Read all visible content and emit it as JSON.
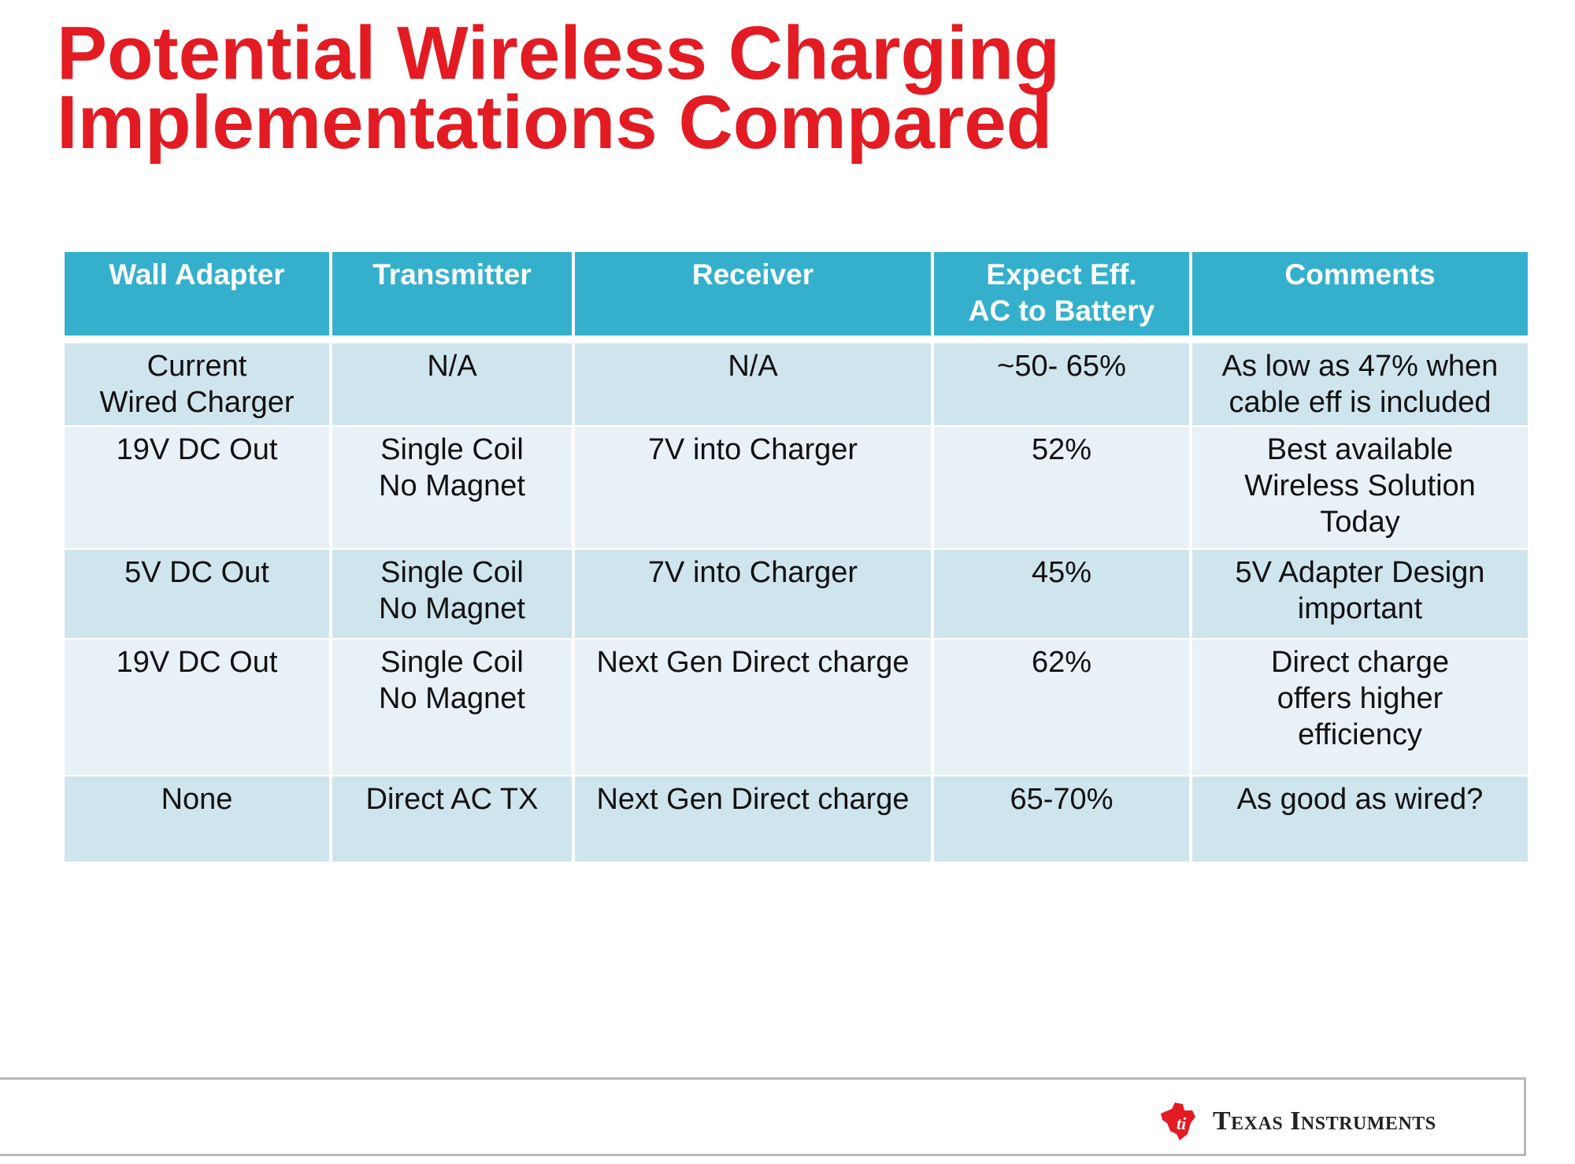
{
  "slide": {
    "title_line1": "Potential Wireless Charging",
    "title_line2": "Implementations Compared"
  },
  "table": {
    "headers": [
      [
        "Wall Adapter"
      ],
      [
        "Transmitter"
      ],
      [
        "Receiver"
      ],
      [
        "Expect Eff.",
        "AC to Battery"
      ],
      [
        "Comments"
      ]
    ],
    "rows": [
      [
        [
          "Current",
          "Wired Charger"
        ],
        [
          "N/A"
        ],
        [
          "N/A"
        ],
        [
          "~50- 65%"
        ],
        [
          "As low as 47% when",
          "cable eff is included"
        ]
      ],
      [
        [
          "19V DC Out"
        ],
        [
          "Single Coil",
          "No Magnet"
        ],
        [
          "7V into Charger"
        ],
        [
          "52%"
        ],
        [
          "Best available",
          "Wireless Solution",
          "Today"
        ]
      ],
      [
        [
          "5V DC Out"
        ],
        [
          "Single Coil",
          "No Magnet"
        ],
        [
          "7V into Charger"
        ],
        [
          "45%"
        ],
        [
          "5V Adapter Design",
          "important"
        ]
      ],
      [
        [
          "19V DC Out"
        ],
        [
          "Single Coil",
          "No Magnet"
        ],
        [
          "Next Gen Direct charge"
        ],
        [
          "62%"
        ],
        [
          "Direct charge",
          "offers higher",
          "efficiency"
        ]
      ],
      [
        [
          "None"
        ],
        [
          "Direct AC TX"
        ],
        [
          "Next Gen Direct charge"
        ],
        [
          "65-70%"
        ],
        [
          "As good as wired?"
        ]
      ]
    ]
  },
  "footer": {
    "logo_text": "Texas Instruments",
    "logo_icon": "ti-logo-icon",
    "brand_color": "#e31b23"
  },
  "colors": {
    "header_bg": "#35b0cc",
    "row_dark": "#cfe5ee",
    "row_light": "#e8f1f5",
    "title": "#e31b23"
  }
}
